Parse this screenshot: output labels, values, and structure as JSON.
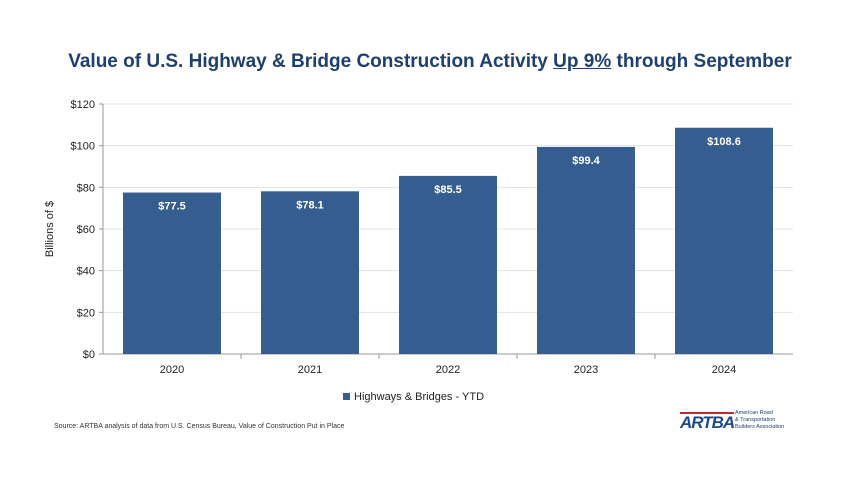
{
  "title": {
    "pre": "Value of U.S. Highway & Bridge Construction Activity ",
    "underlined": "Up 9%",
    "post": " through September"
  },
  "source": "Source: ARTBA analysis of data from U.S. Census Bureau, Value of Construction Put in Place",
  "logo": {
    "mark": "ARTBA",
    "line1": "American Road",
    "line2": "& Transportation",
    "line3": "Builders Association"
  },
  "chart_data": {
    "type": "bar",
    "categories": [
      "2020",
      "2021",
      "2022",
      "2023",
      "2024"
    ],
    "series": [
      {
        "name": "Highways & Bridges - YTD",
        "values": [
          77.5,
          78.1,
          85.5,
          99.4,
          108.6
        ],
        "color": "#355d8f"
      }
    ],
    "data_labels": [
      "$77.5",
      "$78.1",
      "$85.5",
      "$99.4",
      "$108.6"
    ],
    "ylabel": "Billions  of  $",
    "ylim": [
      0,
      120
    ],
    "yticks": [
      "$0",
      "$20",
      "$40",
      "$60",
      "$80",
      "$100",
      "$120"
    ],
    "grid": true,
    "legend": "bottom"
  }
}
